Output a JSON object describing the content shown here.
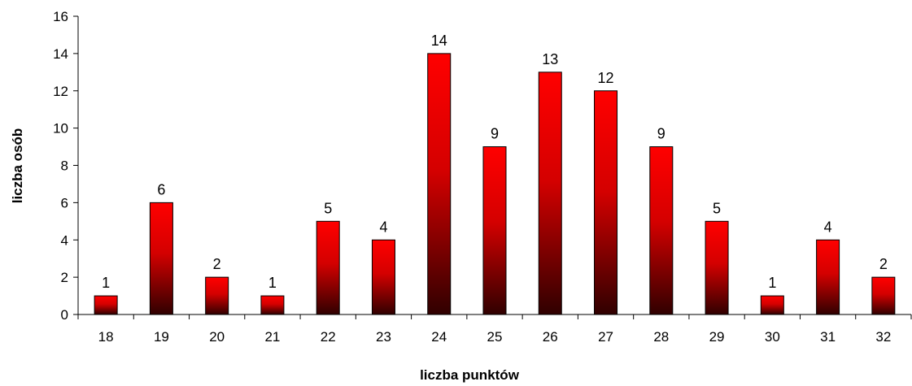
{
  "chart_data": {
    "type": "bar",
    "title": "",
    "xlabel": "liczba punktów",
    "ylabel": "liczba osób",
    "categories": [
      "18",
      "19",
      "20",
      "21",
      "22",
      "23",
      "24",
      "25",
      "26",
      "27",
      "28",
      "29",
      "30",
      "31",
      "32"
    ],
    "values": [
      1,
      6,
      2,
      1,
      5,
      4,
      14,
      9,
      13,
      12,
      9,
      5,
      1,
      4,
      2
    ],
    "ylim": [
      0,
      16
    ],
    "yticks": [
      "0",
      "2",
      "4",
      "6",
      "8",
      "10",
      "12",
      "14",
      "16"
    ],
    "grid": false,
    "legend": "none",
    "data_labels": true,
    "colors": {
      "bar_top": "#ff0000",
      "bar_bottom": "#300000",
      "bar_border": "#000000"
    }
  }
}
